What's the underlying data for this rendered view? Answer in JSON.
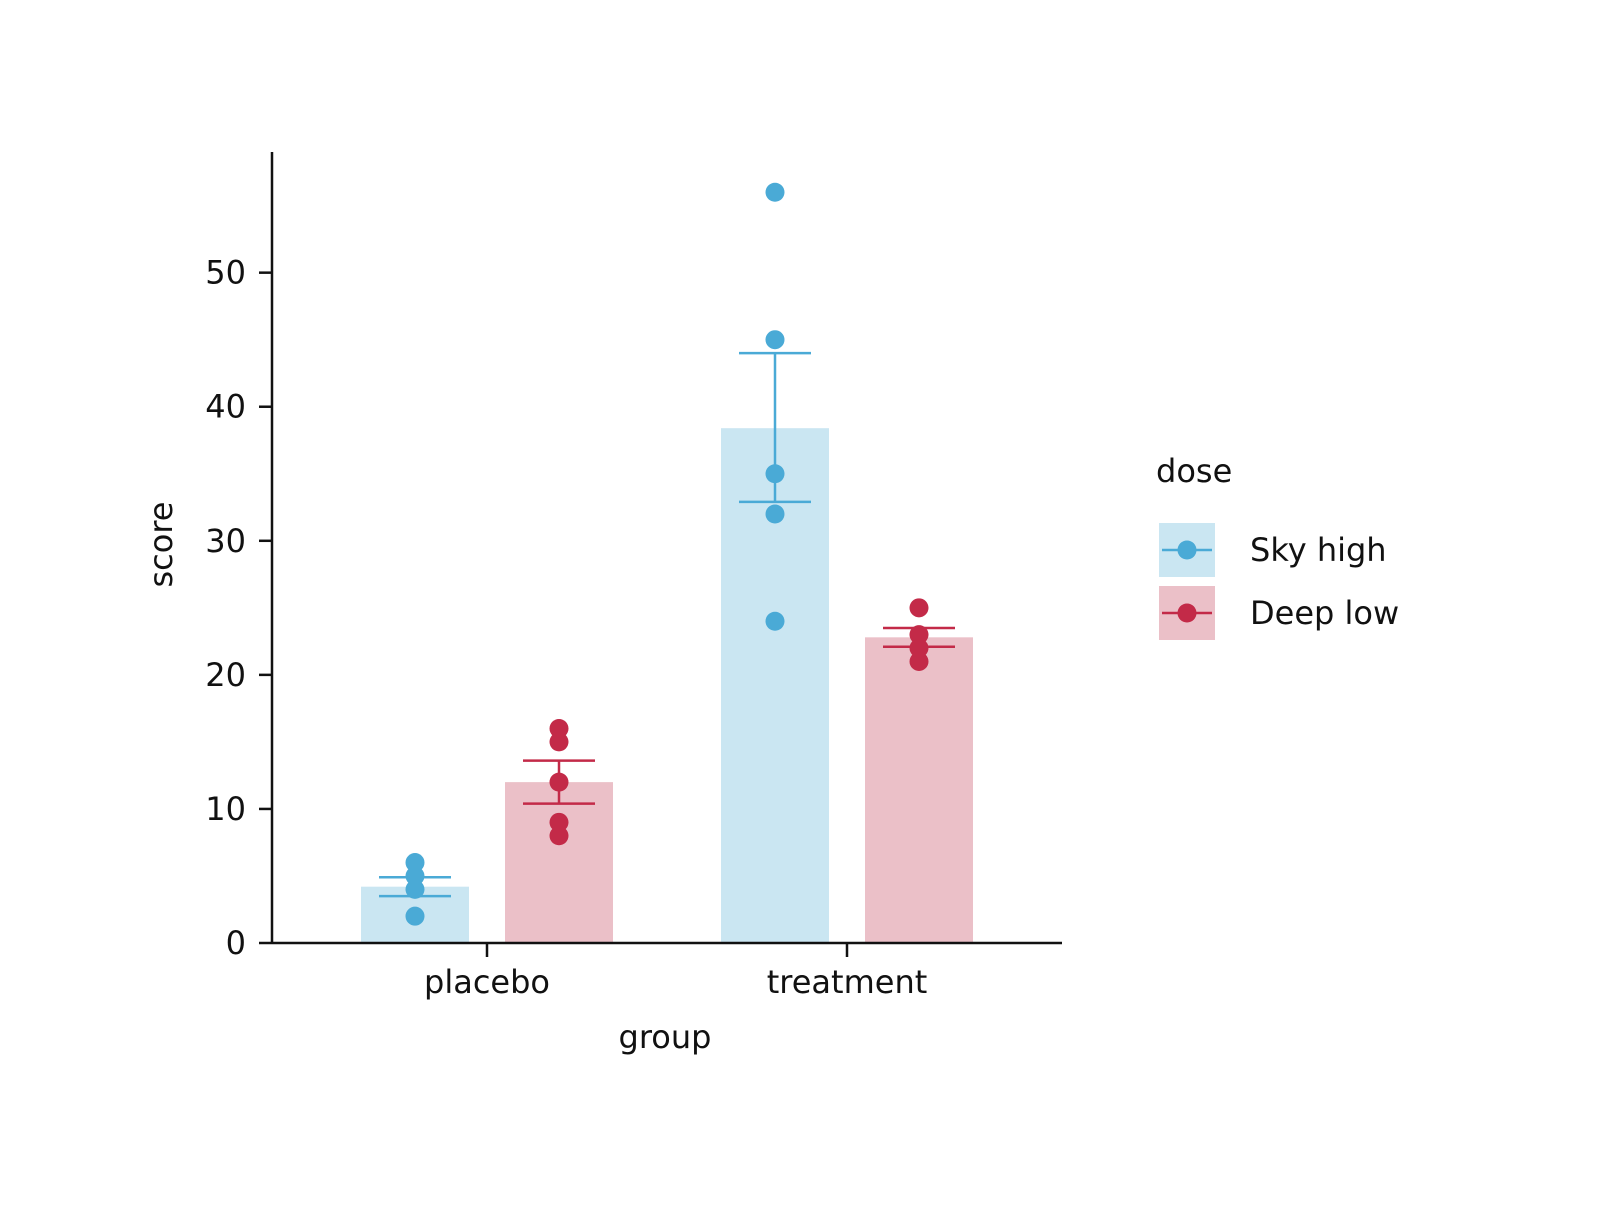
{
  "chart_data": {
    "type": "bar",
    "xlabel": "group",
    "ylabel": "score",
    "categories": [
      "placebo",
      "treatment"
    ],
    "ylim": [
      0,
      59
    ],
    "yticks": [
      0,
      10,
      20,
      30,
      40,
      50
    ],
    "legend": {
      "title": "dose",
      "placement": "right"
    },
    "series": [
      {
        "name": "Sky high",
        "bar_color": "#cae6f2",
        "point_color": "#4aaad6",
        "values": [
          4.2,
          38.4
        ],
        "error_low": [
          3.5,
          32.9
        ],
        "error_high": [
          4.9,
          44.0
        ],
        "points": [
          [
            2,
            4,
            5,
            6
          ],
          [
            24,
            32,
            35,
            45,
            56
          ]
        ]
      },
      {
        "name": "Deep low",
        "bar_color": "#ebc0c8",
        "point_color": "#c32a48",
        "values": [
          12,
          22.8
        ],
        "error_low": [
          10.4,
          22.1
        ],
        "error_high": [
          13.6,
          23.5
        ],
        "points": [
          [
            8,
            9,
            12,
            15,
            16
          ],
          [
            21,
            22,
            23,
            25
          ]
        ]
      }
    ]
  }
}
